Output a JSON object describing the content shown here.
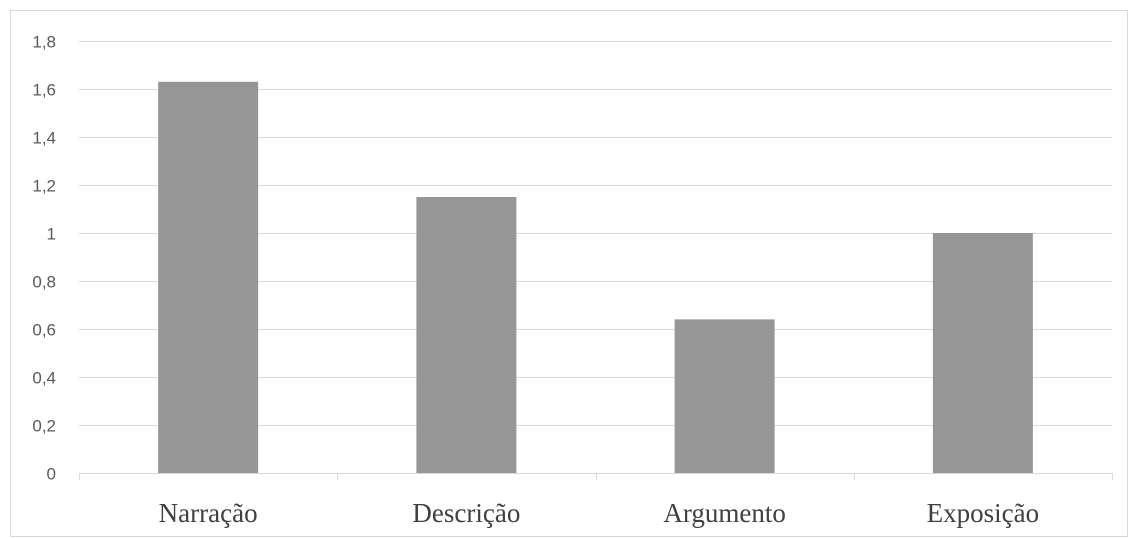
{
  "chart_data": {
    "type": "bar",
    "title": "",
    "xlabel": "",
    "ylabel": "",
    "categories": [
      "Narração",
      "Descrição",
      "Argumento",
      "Exposição"
    ],
    "values": [
      1.63,
      1.15,
      0.64,
      1.0
    ],
    "ylim": [
      0,
      1.8
    ],
    "yticks": [
      0,
      0.2,
      0.4,
      0.6,
      0.8,
      1,
      1.2,
      1.4,
      1.6,
      1.8
    ],
    "ytick_labels": [
      "0",
      "0,2",
      "0,4",
      "0,6",
      "0,8",
      "1",
      "1,2",
      "1,4",
      "1,6",
      "1,8"
    ],
    "grid": true,
    "legend": "none",
    "bar_color": "#969696",
    "grid_color": "#d9d9d9"
  }
}
